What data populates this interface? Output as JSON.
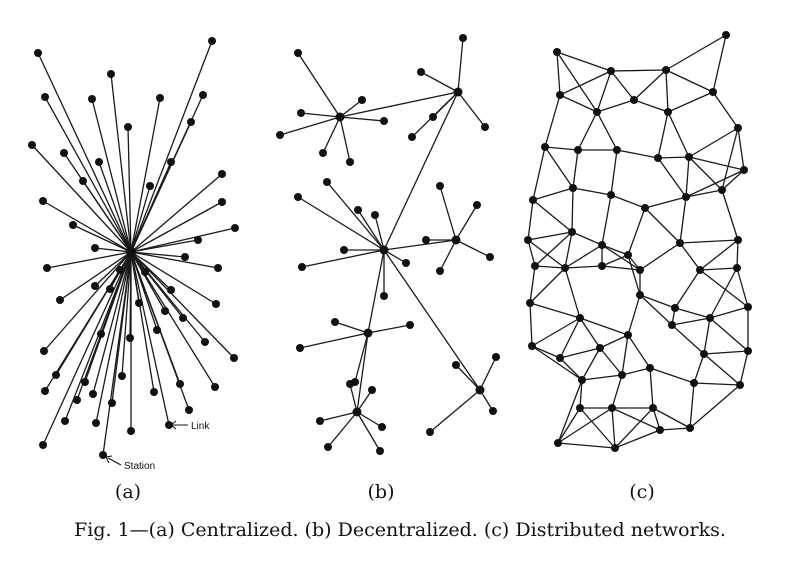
{
  "figure": {
    "caption": "Fig. 1—(a) Centralized. (b) Decentralized. (c) Distributed networks.",
    "panels": [
      {
        "id": "a",
        "label": "(a)",
        "annotations": {
          "link": "Link",
          "station": "Station"
        }
      },
      {
        "id": "b",
        "label": "(b)"
      },
      {
        "id": "c",
        "label": "(c)"
      }
    ]
  }
}
